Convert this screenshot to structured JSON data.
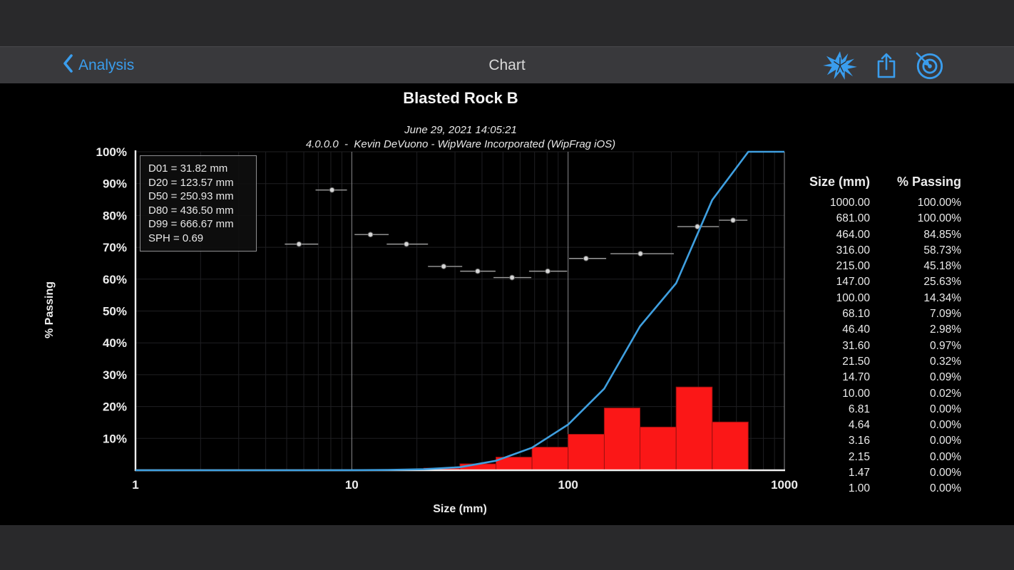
{
  "nav": {
    "back_label": "Analysis",
    "title": "Chart"
  },
  "chart_header": {
    "title": "Blasted Rock B",
    "date": "June 29, 2021 14:05:21",
    "attribution": "4.0.0.0  -  Kevin DeVuono - WipWare Incorporated (WipFrag iOS)"
  },
  "legend": {
    "lines": [
      "D01 = 31.82 mm",
      "D20 = 123.57 mm",
      "D50 = 250.93 mm",
      "D80 = 436.50 mm",
      "D99 = 666.67 mm",
      "SPH = 0.69"
    ]
  },
  "chart_data": {
    "type": "line+bar",
    "title": "Blasted Rock B",
    "x_scale": "log",
    "xlabel": "Size (mm)",
    "ylabel": "% Passing",
    "xlim": [
      1,
      1000
    ],
    "ylim": [
      0,
      100
    ],
    "grid": true,
    "x_ticks": [
      {
        "value": 1,
        "label": "1"
      },
      {
        "value": 10,
        "label": "10"
      },
      {
        "value": 100,
        "label": "100"
      },
      {
        "value": 1000,
        "label": "1000"
      }
    ],
    "y_ticks": [
      {
        "value": 10,
        "label": "10%"
      },
      {
        "value": 20,
        "label": "20%"
      },
      {
        "value": 30,
        "label": "30%"
      },
      {
        "value": 40,
        "label": "40%"
      },
      {
        "value": 50,
        "label": "50%"
      },
      {
        "value": 60,
        "label": "60%"
      },
      {
        "value": 70,
        "label": "70%"
      },
      {
        "value": 80,
        "label": "80%"
      },
      {
        "value": 90,
        "label": "90%"
      },
      {
        "value": 100,
        "label": "100%"
      }
    ],
    "cumulative_series": {
      "name": "cumulative-percent-passing",
      "points": [
        [
          1,
          0
        ],
        [
          1.47,
          0
        ],
        [
          2.15,
          0
        ],
        [
          3.16,
          0
        ],
        [
          4.64,
          0
        ],
        [
          6.81,
          0
        ],
        [
          10,
          0.02
        ],
        [
          14.7,
          0.09
        ],
        [
          21.5,
          0.32
        ],
        [
          31.6,
          0.97
        ],
        [
          46.4,
          2.98
        ],
        [
          68.1,
          7.09
        ],
        [
          100,
          14.34
        ],
        [
          147,
          25.63
        ],
        [
          215,
          45.18
        ],
        [
          316,
          58.73
        ],
        [
          464,
          84.85
        ],
        [
          681,
          100
        ],
        [
          1000,
          100
        ]
      ]
    },
    "histogram_bars": [
      {
        "from": 6.81,
        "to": 10,
        "value": 0.02
      },
      {
        "from": 10,
        "to": 14.7,
        "value": 0.07
      },
      {
        "from": 14.7,
        "to": 21.5,
        "value": 0.23
      },
      {
        "from": 21.5,
        "to": 31.6,
        "value": 0.65
      },
      {
        "from": 31.6,
        "to": 46.4,
        "value": 2.01
      },
      {
        "from": 46.4,
        "to": 68.1,
        "value": 4.11
      },
      {
        "from": 68.1,
        "to": 100,
        "value": 7.25
      },
      {
        "from": 100,
        "to": 147,
        "value": 11.29
      },
      {
        "from": 147,
        "to": 215,
        "value": 19.55
      },
      {
        "from": 215,
        "to": 316,
        "value": 13.55
      },
      {
        "from": 316,
        "to": 464,
        "value": 26.12
      },
      {
        "from": 464,
        "to": 681,
        "value": 15.15
      },
      {
        "from": 681,
        "to": 1000,
        "value": 0
      }
    ],
    "measurements": [
      {
        "x": 5.7,
        "min": 4.9,
        "max": 7.0,
        "pct": 71
      },
      {
        "x": 8.1,
        "min": 6.8,
        "max": 9.5,
        "pct": 88
      },
      {
        "x": 12.2,
        "min": 10.3,
        "max": 14.8,
        "pct": 74
      },
      {
        "x": 17.9,
        "min": 14.5,
        "max": 22.5,
        "pct": 71
      },
      {
        "x": 26.6,
        "min": 22.5,
        "max": 32.4,
        "pct": 64
      },
      {
        "x": 38.2,
        "min": 31.7,
        "max": 46.2,
        "pct": 62.5
      },
      {
        "x": 55.1,
        "min": 45.2,
        "max": 67.6,
        "pct": 60.5
      },
      {
        "x": 80.5,
        "min": 66,
        "max": 99,
        "pct": 62.5
      },
      {
        "x": 121,
        "min": 101,
        "max": 150,
        "pct": 66.5
      },
      {
        "x": 216,
        "min": 157,
        "max": 308,
        "pct": 68
      },
      {
        "x": 396,
        "min": 320,
        "max": 498,
        "pct": 76.5
      },
      {
        "x": 579,
        "min": 498,
        "max": 675,
        "pct": 78.5
      }
    ]
  },
  "table": {
    "headers": [
      "Size (mm)",
      "% Passing"
    ],
    "rows": [
      [
        "1000.00",
        "100.00%"
      ],
      [
        "681.00",
        "100.00%"
      ],
      [
        "464.00",
        "84.85%"
      ],
      [
        "316.00",
        "58.73%"
      ],
      [
        "215.00",
        "45.18%"
      ],
      [
        "147.00",
        "25.63%"
      ],
      [
        "100.00",
        "14.34%"
      ],
      [
        "68.10",
        "7.09%"
      ],
      [
        "46.40",
        "2.98%"
      ],
      [
        "31.60",
        "0.97%"
      ],
      [
        "21.50",
        "0.32%"
      ],
      [
        "14.70",
        "0.09%"
      ],
      [
        "10.00",
        "0.02%"
      ],
      [
        "6.81",
        "0.00%"
      ],
      [
        "4.64",
        "0.00%"
      ],
      [
        "3.16",
        "0.00%"
      ],
      [
        "2.15",
        "0.00%"
      ],
      [
        "1.47",
        "0.00%"
      ],
      [
        "1.00",
        "0.00%"
      ]
    ]
  },
  "colors": {
    "accent_blue": "#3a9ded",
    "curve_blue": "#3f9fdf",
    "bar_red": "#fb1717",
    "chrome_gray": "#39393c",
    "background": "#000000"
  }
}
